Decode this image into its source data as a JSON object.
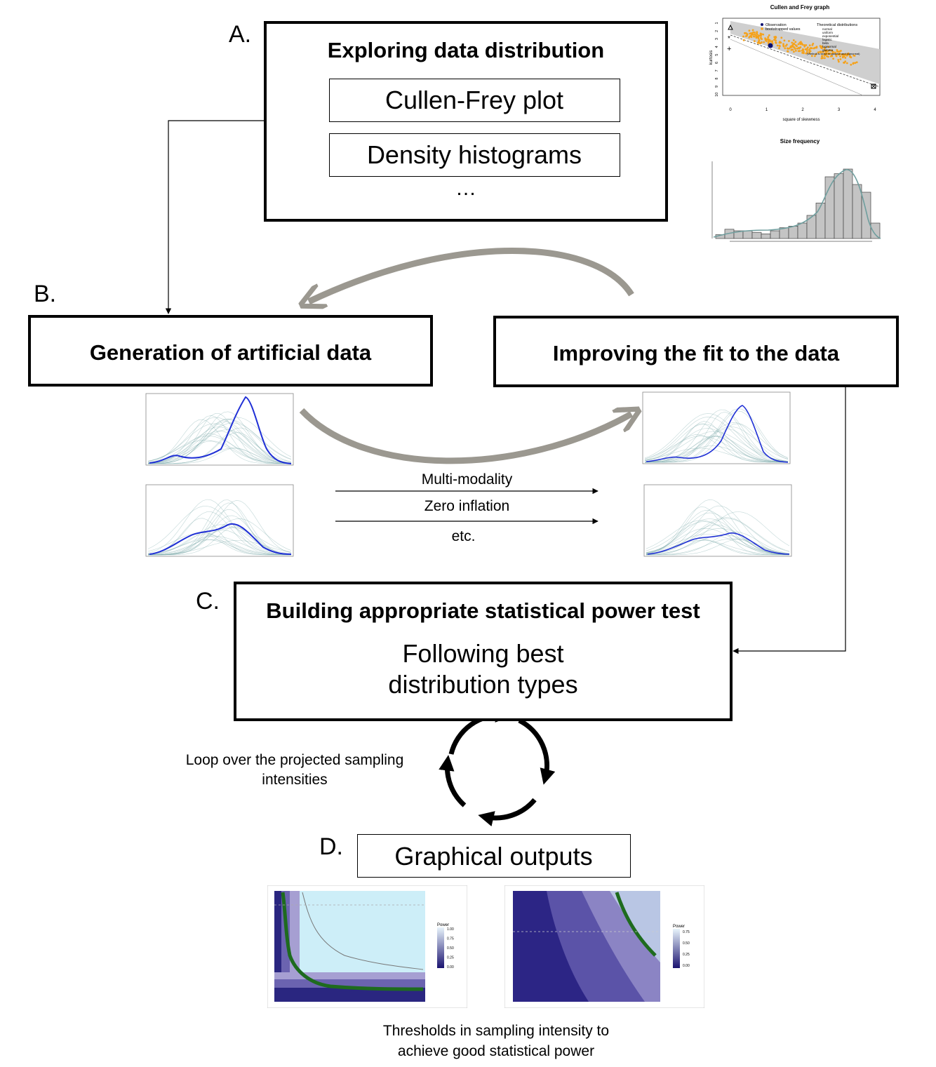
{
  "sections": {
    "a": {
      "letter": "A.",
      "title": "Exploring data distribution",
      "items": [
        "Cullen-Frey plot",
        "Density histograms"
      ],
      "ellipsis": "…",
      "cullen_frey": {
        "title": "Cullen and Frey graph",
        "xlabel": "square of skewness",
        "ylabel": "kurtosis",
        "x_ticks": [
          "0",
          "1",
          "2",
          "3",
          "4"
        ],
        "y_ticks": [
          "1",
          "2",
          "3",
          "4",
          "5",
          "6",
          "7",
          "8",
          "9",
          "10"
        ],
        "legend_observation": "Observation",
        "legend_bootstrap": "bootstrapped values",
        "legend_theoretical": "Theoretical distributions",
        "legend_items": [
          "normal",
          "uniform",
          "exponential",
          "logistic",
          "beta",
          "lognormal",
          "gamma"
        ],
        "legend_note": "(Weibull is close to gamma and lognormal)"
      },
      "size_frequency": {
        "title": "Size frequency",
        "bars": [
          0.05,
          0.12,
          0.1,
          0.1,
          0.08,
          0.06,
          0.1,
          0.14,
          0.16,
          0.2,
          0.3,
          0.46,
          0.8,
          0.84,
          0.9,
          0.7,
          0.6,
          0.2
        ]
      }
    },
    "b": {
      "letter": "B.",
      "title_left": "Generation of artificial data",
      "title_right": "Improving the fit to the data",
      "mid_labels": [
        "Multi-modality",
        "Zero inflation",
        "etc."
      ]
    },
    "c": {
      "letter": "C.",
      "title": "Building appropriate statistical power test",
      "subtitle_line1": "Following best",
      "subtitle_line2": "distribution types",
      "loop_line1": "Loop over the projected sampling",
      "loop_line2": "intensities"
    },
    "d": {
      "letter": "D.",
      "title": "Graphical outputs",
      "heatmap_left": {
        "legend_title": "Power",
        "legend_ticks": [
          "1.00",
          "0.75",
          "0.50",
          "0.25",
          "0.00"
        ]
      },
      "heatmap_right": {
        "legend_title": "Power",
        "legend_ticks": [
          "0.75",
          "0.50",
          "0.25",
          "0.00"
        ]
      },
      "caption_line1": "Thresholds in sampling intensity to",
      "caption_line2": "achieve good statistical power"
    }
  },
  "colors": {
    "gray_arrow": "#9b9890",
    "orange": "#f5a21b",
    "navy": "#1a2b8a",
    "blue_curve": "#1f2fd6",
    "teal": "#7aa8a8",
    "green": "#1e6b1e"
  }
}
